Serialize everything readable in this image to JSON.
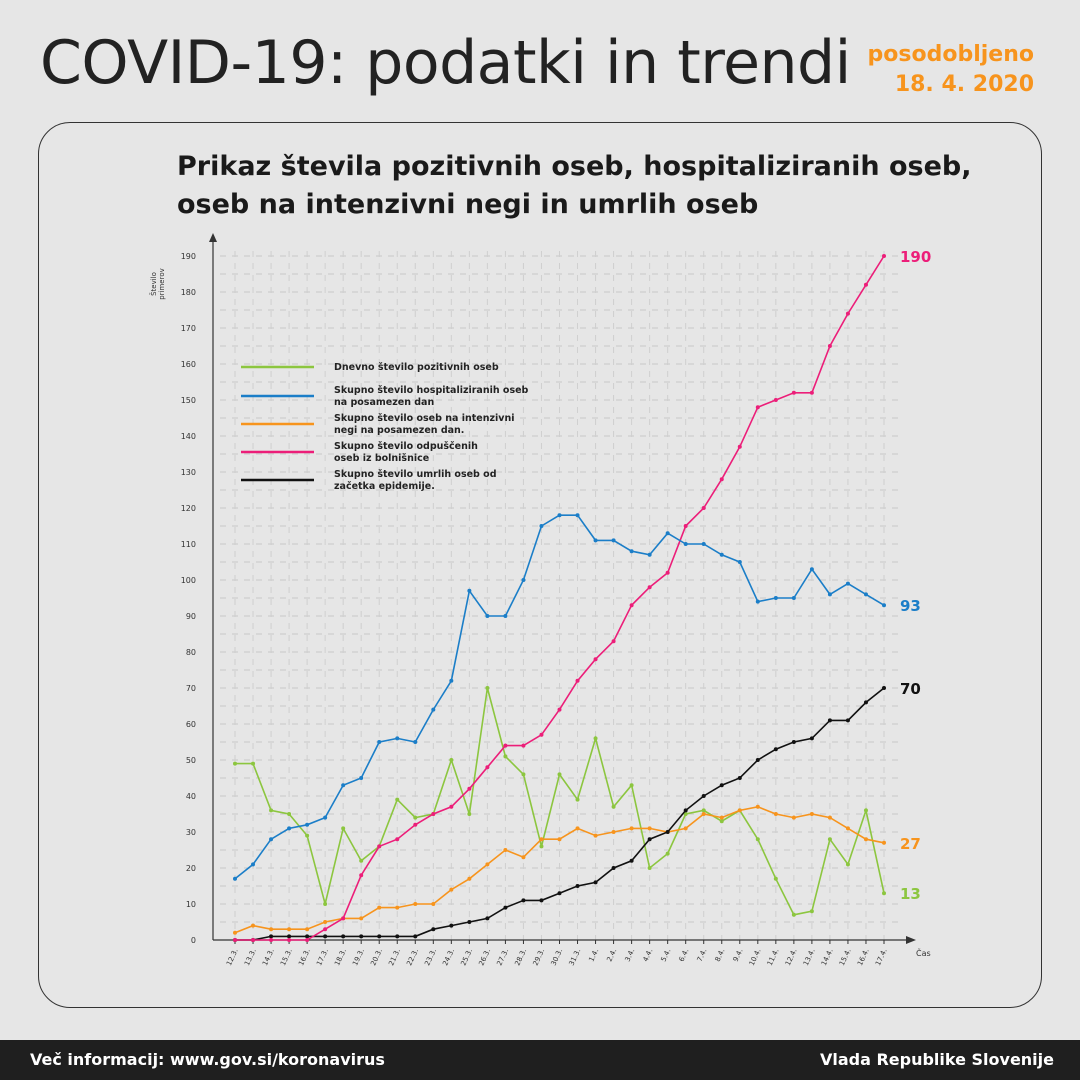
{
  "header": {
    "title": "COVID-19: podatki in trendi",
    "updated_label": "posodobljeno",
    "updated_date": "18. 4. 2020"
  },
  "footer": {
    "info": "Več informacij: www.gov.si/koronavirus",
    "org": "Vlada Republike Slovenije"
  },
  "colors": {
    "green": "#8cc63f",
    "blue": "#1b7ec8",
    "orange": "#f7941d",
    "pink": "#ec1e79",
    "black": "#111111",
    "accent": "#f7941d"
  },
  "chart_data": {
    "type": "line",
    "title": "Prikaz števila pozitivnih oseb, hospitaliziranih oseb, oseb na intenzivni negi in umrlih oseb",
    "xlabel": "Čas",
    "ylabel": "Število primerov",
    "ylim": [
      0,
      190
    ],
    "yticks": [
      0,
      10,
      20,
      30,
      40,
      50,
      60,
      70,
      80,
      90,
      100,
      110,
      120,
      130,
      140,
      150,
      160,
      170,
      180,
      190
    ],
    "grid": true,
    "legend_position": "top-left",
    "categories": [
      "12.3.",
      "13.3.",
      "14.3.",
      "15.3.",
      "16.3.",
      "17.3.",
      "18.3.",
      "19.3.",
      "20.3.",
      "21.3.",
      "22.3.",
      "23.3.",
      "24.3.",
      "25.3.",
      "26.3.",
      "27.3.",
      "28.3.",
      "29.3.",
      "30.3.",
      "31.3.",
      "1.4.",
      "2.4.",
      "3.4.",
      "4.4.",
      "5.4.",
      "6.4.",
      "7.4.",
      "8.4.",
      "9.4.",
      "10.4.",
      "11.4.",
      "12.4.",
      "13.4.",
      "14.4.",
      "15.4.",
      "16.4.",
      "17.4."
    ],
    "series": [
      {
        "name": "Dnevno število pozitivnih oseb",
        "color": "#8cc63f",
        "end_label": "13",
        "values": [
          49,
          49,
          36,
          35,
          29,
          10,
          31,
          22,
          26,
          39,
          34,
          35,
          50,
          35,
          70,
          51,
          46,
          26,
          46,
          39,
          56,
          37,
          43,
          20,
          24,
          35,
          36,
          33,
          36,
          28,
          17,
          7,
          8,
          28,
          21,
          36,
          13
        ]
      },
      {
        "name": "Skupno število hospitaliziranih oseb na posamezen dan",
        "color": "#1b7ec8",
        "end_label": "93",
        "values": [
          17,
          21,
          28,
          31,
          32,
          34,
          43,
          45,
          55,
          56,
          55,
          64,
          72,
          97,
          90,
          90,
          100,
          115,
          118,
          118,
          111,
          111,
          108,
          107,
          113,
          110,
          110,
          107,
          105,
          94,
          95,
          95,
          103,
          96,
          99,
          96,
          93
        ]
      },
      {
        "name": "Skupno število oseb na intenzivni negi na posamezen dan.",
        "color": "#f7941d",
        "end_label": "27",
        "values": [
          2,
          4,
          3,
          3,
          3,
          5,
          6,
          6,
          9,
          9,
          10,
          10,
          14,
          17,
          21,
          25,
          23,
          28,
          28,
          31,
          29,
          30,
          31,
          31,
          30,
          31,
          35,
          34,
          36,
          37,
          35,
          34,
          35,
          34,
          31,
          28,
          27
        ]
      },
      {
        "name": "Skupno število odpuščenih oseb iz bolnišnice",
        "color": "#ec1e79",
        "end_label": "190",
        "values": [
          0,
          0,
          0,
          0,
          0,
          3,
          6,
          18,
          26,
          28,
          32,
          35,
          37,
          42,
          48,
          54,
          54,
          57,
          64,
          72,
          78,
          83,
          93,
          98,
          102,
          115,
          120,
          128,
          137,
          148,
          150,
          152,
          152,
          165,
          174,
          182,
          190
        ]
      },
      {
        "name": "Skupno število umrlih oseb od začetka epidemije.",
        "color": "#111111",
        "end_label": "70",
        "values": [
          0,
          0,
          1,
          1,
          1,
          1,
          1,
          1,
          1,
          1,
          1,
          3,
          4,
          5,
          6,
          9,
          11,
          11,
          13,
          15,
          16,
          20,
          22,
          28,
          30,
          36,
          40,
          43,
          45,
          50,
          53,
          55,
          56,
          61,
          61,
          66,
          70
        ]
      }
    ]
  }
}
